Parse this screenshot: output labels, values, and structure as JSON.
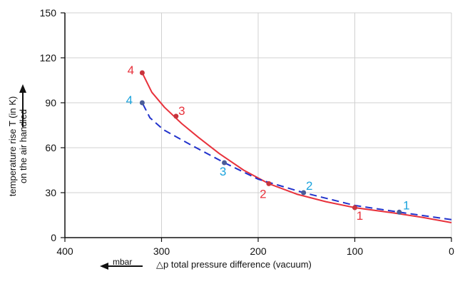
{
  "chart_data": {
    "type": "line",
    "xlim": [
      400,
      0
    ],
    "ylim": [
      0,
      150
    ],
    "x_ticks": [
      "400",
      "300",
      "200",
      "100",
      "0"
    ],
    "y_ticks": [
      "0",
      "30",
      "60",
      "90",
      "120",
      "150"
    ],
    "x_tick_values": [
      400,
      300,
      200,
      100,
      0
    ],
    "y_tick_values": [
      0,
      30,
      60,
      90,
      120,
      150
    ],
    "grid": true,
    "ylabel_line1": "temperature rise T (in K)",
    "ylabel_line2": "on the air handled",
    "xlabel": "△p total pressure difference (vacuum)",
    "x_unit": "mbar",
    "series": [
      {
        "color": "#e8323c",
        "style": "solid",
        "values": [
          {
            "x": 0,
            "y": 10
          },
          {
            "x": 30,
            "y": 13.5
          },
          {
            "x": 60,
            "y": 16.5
          },
          {
            "x": 100,
            "y": 20
          },
          {
            "x": 130,
            "y": 24
          },
          {
            "x": 160,
            "y": 29
          },
          {
            "x": 189,
            "y": 36
          },
          {
            "x": 215,
            "y": 45
          },
          {
            "x": 240,
            "y": 56
          },
          {
            "x": 262,
            "y": 67
          },
          {
            "x": 279,
            "y": 76
          },
          {
            "x": 297,
            "y": 87
          },
          {
            "x": 310,
            "y": 97
          },
          {
            "x": 320,
            "y": 110
          }
        ],
        "markers": [
          {
            "x": 100,
            "y": 20,
            "label": "1"
          },
          {
            "x": 189,
            "y": 36,
            "label": "2"
          },
          {
            "x": 285,
            "y": 81,
            "label": "3"
          },
          {
            "x": 320,
            "y": 110,
            "label": "4"
          }
        ]
      },
      {
        "color": "#2233cc",
        "style": "dashed",
        "values": [
          {
            "x": 0,
            "y": 12
          },
          {
            "x": 54,
            "y": 17
          },
          {
            "x": 100,
            "y": 21.5
          },
          {
            "x": 153,
            "y": 30
          },
          {
            "x": 200,
            "y": 39
          },
          {
            "x": 235,
            "y": 50
          },
          {
            "x": 270,
            "y": 62
          },
          {
            "x": 298,
            "y": 72
          },
          {
            "x": 312,
            "y": 80
          },
          {
            "x": 320,
            "y": 90
          }
        ],
        "markers": [
          {
            "x": 54,
            "y": 17,
            "label": "1"
          },
          {
            "x": 153,
            "y": 30,
            "label": "2"
          },
          {
            "x": 235,
            "y": 50,
            "label": "3"
          },
          {
            "x": 320,
            "y": 90,
            "label": "4"
          }
        ],
        "label_color": "#1aa3dd"
      }
    ]
  }
}
